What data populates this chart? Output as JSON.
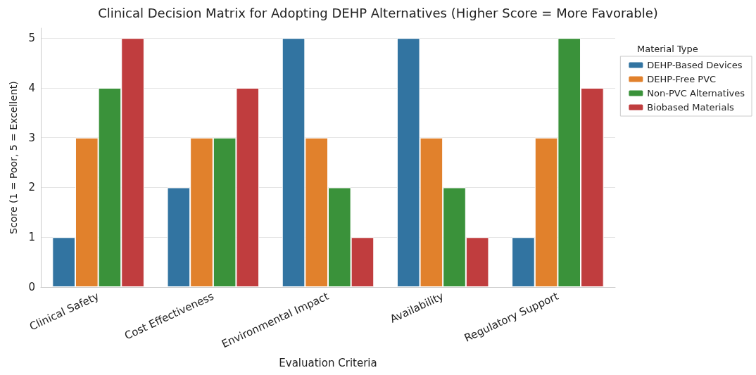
{
  "chart_data": {
    "type": "bar",
    "title": "Clinical Decision Matrix for Adopting DEHP Alternatives (Higher Score = More Favorable)",
    "xlabel": "Evaluation Criteria",
    "ylabel": "Score (1 = Poor, 5 = Excellent)",
    "legend_title": "Material Type",
    "categories": [
      "Clinical Safety",
      "Cost Effectiveness",
      "Environmental Impact",
      "Availability",
      "Regulatory Support"
    ],
    "series": [
      {
        "name": "DEHP-Based Devices",
        "color": "#3274a1",
        "values": [
          1,
          2,
          5,
          5,
          1
        ]
      },
      {
        "name": "DEHP-Free PVC",
        "color": "#e1812c",
        "values": [
          3,
          3,
          3,
          3,
          3
        ]
      },
      {
        "name": "Non-PVC Alternatives",
        "color": "#3a923a",
        "values": [
          4,
          3,
          2,
          2,
          5
        ]
      },
      {
        "name": "Biobased Materials",
        "color": "#c03d3e",
        "values": [
          5,
          4,
          1,
          1,
          4
        ]
      }
    ],
    "ylim": [
      0,
      5.2
    ],
    "yticks": [
      0,
      1,
      2,
      3,
      4,
      5
    ],
    "grid": "y",
    "legend": "right"
  }
}
